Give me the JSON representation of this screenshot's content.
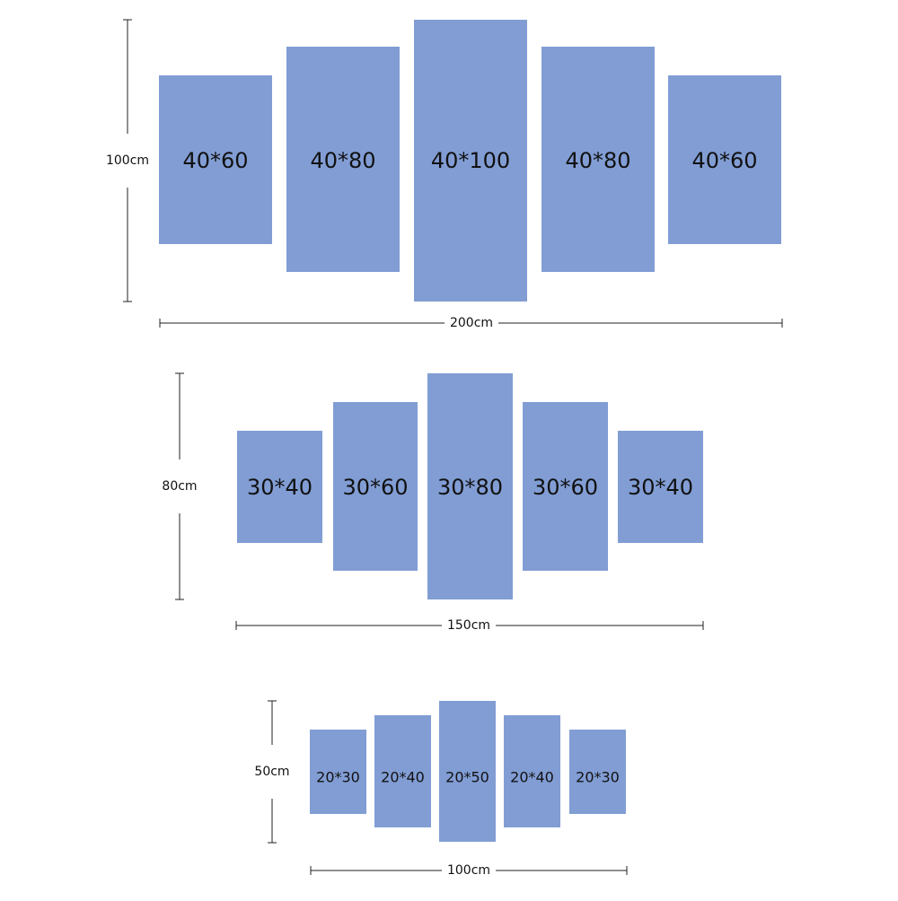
{
  "groups": [
    {
      "height": "100cm",
      "width": "200cm",
      "panels": [
        "40*60",
        "40*80",
        "40*100",
        "40*80",
        "40*60"
      ]
    },
    {
      "height": "80cm",
      "width": "150cm",
      "panels": [
        "30*40",
        "30*60",
        "30*80",
        "30*60",
        "30*40"
      ]
    },
    {
      "height": "50cm",
      "width": "100cm",
      "panels": [
        "20*30",
        "20*40",
        "20*50",
        "20*40",
        "20*30"
      ]
    }
  ]
}
